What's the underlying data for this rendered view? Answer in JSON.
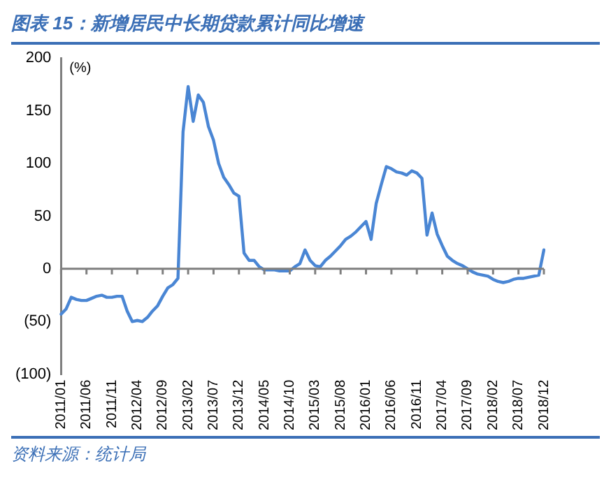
{
  "chart_data": {
    "type": "line",
    "title": "图表 15：新增居民中长期贷款累计同比增速",
    "ylabel": "(%)",
    "annotations": [
      "资料来源：统计局"
    ],
    "categories": [
      "2011/01",
      null,
      null,
      null,
      null,
      "2011/06",
      null,
      null,
      null,
      null,
      "2011/11",
      null,
      null,
      null,
      null,
      "2012/04",
      null,
      null,
      null,
      null,
      "2012/09",
      null,
      null,
      null,
      null,
      "2013/02",
      null,
      null,
      null,
      null,
      "2013/07",
      null,
      null,
      null,
      null,
      "2013/12",
      null,
      null,
      null,
      null,
      "2014/05",
      null,
      null,
      null,
      null,
      "2014/10",
      null,
      null,
      null,
      null,
      "2015/03",
      null,
      null,
      null,
      null,
      "2015/08",
      null,
      null,
      null,
      null,
      "2016/01",
      null,
      null,
      null,
      null,
      "2016/06",
      null,
      null,
      null,
      null,
      "2016/11",
      null,
      null,
      null,
      null,
      "2017/04",
      null,
      null,
      null,
      null,
      "2017/09",
      null,
      null,
      null,
      null,
      "2018/02",
      null,
      null,
      null,
      null,
      "2018/07",
      null,
      null,
      null,
      null,
      "2018/12"
    ],
    "series": [
      {
        "color": "#4a86d4",
        "values": [
          -43,
          -38,
          -27,
          -29,
          -30,
          -30,
          -28,
          -26,
          -25,
          -27,
          -27,
          -26,
          -26,
          -40,
          -50,
          -49,
          -50,
          -46,
          -40,
          -35,
          -26,
          -18,
          -15,
          -9,
          130,
          173,
          140,
          165,
          158,
          135,
          122,
          100,
          87,
          80,
          72,
          69,
          15,
          8,
          8,
          2,
          -1,
          -1,
          -1,
          -2,
          -2,
          -2,
          2,
          5,
          18,
          8,
          3,
          2,
          8,
          12,
          17,
          22,
          28,
          31,
          35,
          40,
          45,
          28,
          62,
          80,
          97,
          95,
          92,
          91,
          89,
          93,
          91,
          86,
          32,
          53,
          33,
          22,
          12,
          8,
          5,
          3,
          0,
          -3,
          -5,
          -6,
          -7,
          -10,
          -12,
          -13,
          -12,
          -10,
          -9,
          -9,
          -8,
          -7,
          -6,
          18
        ]
      }
    ],
    "ylim": [
      -100,
      200
    ],
    "yticks": [
      {
        "value": -100,
        "label": "(100)"
      },
      {
        "value": -50,
        "label": "(50)"
      },
      0,
      50,
      100,
      150,
      200
    ],
    "ref_lines": [
      {
        "axis": "y",
        "value": 0,
        "color": "#7f7f7f"
      }
    ],
    "grid": false,
    "legend": false,
    "marker": "none",
    "line_style": "solid"
  }
}
